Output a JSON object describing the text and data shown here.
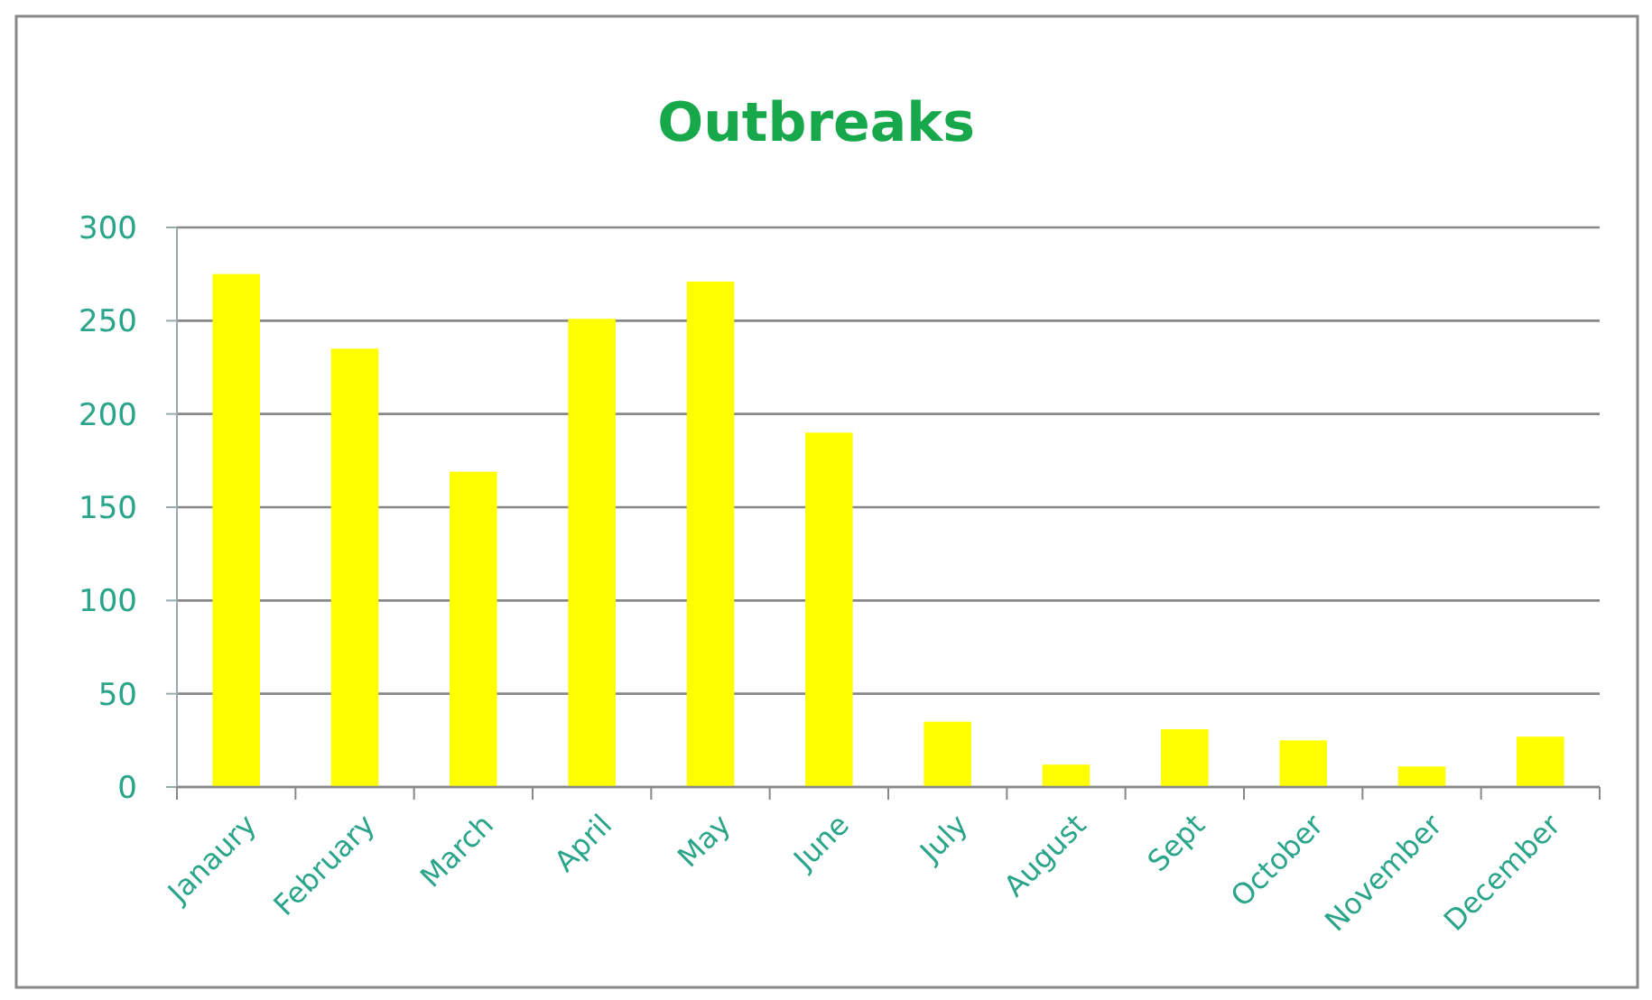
{
  "chart_data": {
    "type": "bar",
    "title": "Outbreaks",
    "categories": [
      "Janaury",
      "February",
      "March",
      "April",
      "May",
      "June",
      "July",
      "August",
      "Sept",
      "October",
      "November",
      "December"
    ],
    "values": [
      275,
      235,
      169,
      251,
      271,
      190,
      35,
      12,
      31,
      25,
      11,
      27
    ],
    "color": "#ffff00",
    "ylim": [
      0,
      300
    ],
    "yticks": [
      0,
      50,
      100,
      150,
      200,
      250,
      300
    ],
    "grid": "y"
  }
}
